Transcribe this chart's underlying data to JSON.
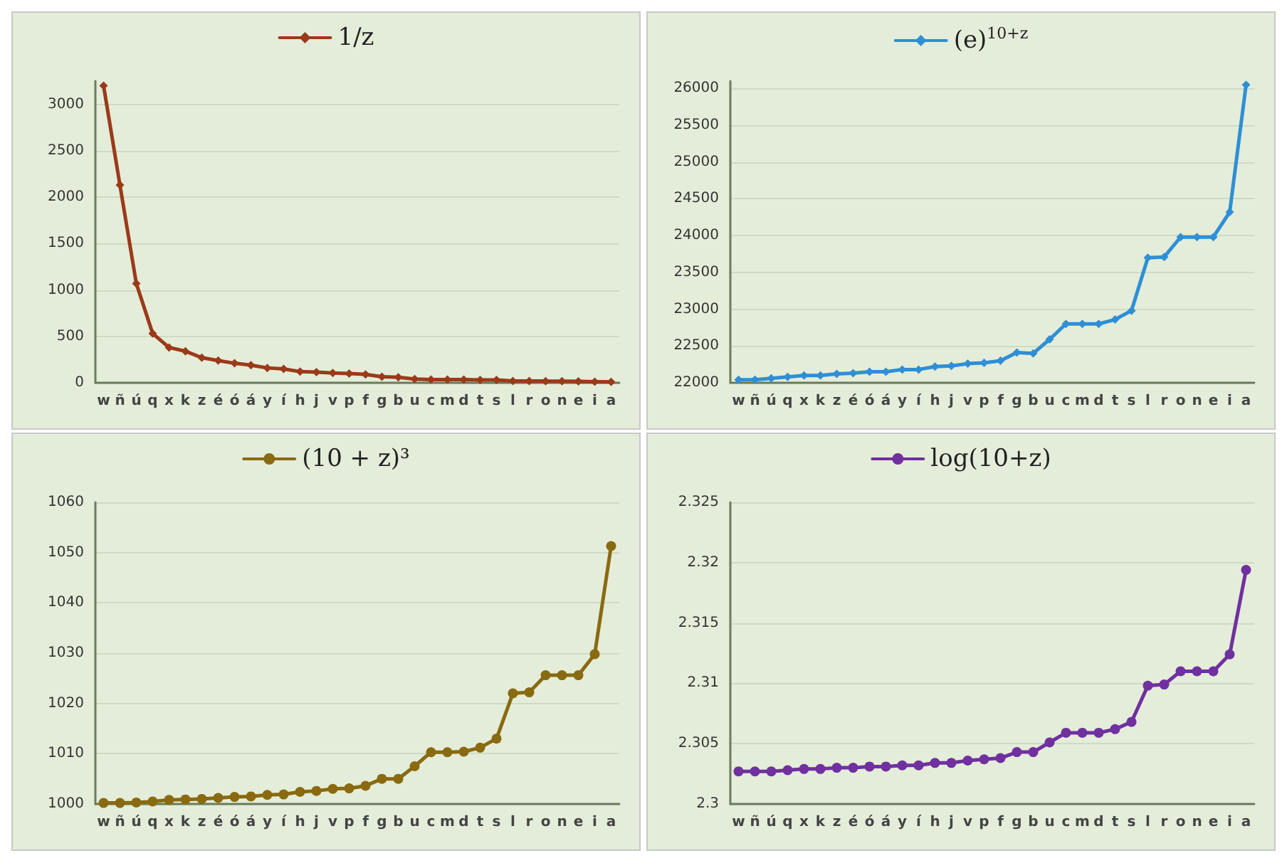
{
  "chart_data": [
    {
      "type": "line",
      "categories": [
        "w",
        "ñ",
        "ú",
        "q",
        "x",
        "k",
        "z",
        "é",
        "ó",
        "á",
        "y",
        "í",
        "h",
        "j",
        "v",
        "p",
        "f",
        "g",
        "b",
        "u",
        "c",
        "m",
        "d",
        "t",
        "s",
        "l",
        "r",
        "o",
        "n",
        "e",
        "i",
        "a"
      ],
      "series": [
        {
          "name": "1/z",
          "color": "#9b3a1a",
          "values": [
            3200,
            2130,
            1070,
            530,
            380,
            340,
            270,
            240,
            210,
            190,
            160,
            150,
            120,
            115,
            105,
            100,
            90,
            65,
            60,
            40,
            35,
            35,
            35,
            30,
            30,
            20,
            20,
            18,
            18,
            15,
            12,
            10
          ]
        }
      ],
      "ylim": [
        0,
        3250
      ],
      "yticks": [
        0,
        500,
        1000,
        1500,
        2000,
        2500,
        3000
      ],
      "grid": "y",
      "legend": "top",
      "marker": "diamond"
    },
    {
      "type": "line",
      "categories": [
        "w",
        "ñ",
        "ú",
        "q",
        "x",
        "k",
        "z",
        "é",
        "ó",
        "á",
        "y",
        "í",
        "h",
        "j",
        "v",
        "p",
        "f",
        "g",
        "b",
        "u",
        "c",
        "m",
        "d",
        "t",
        "s",
        "l",
        "r",
        "o",
        "n",
        "e",
        "i",
        "a"
      ],
      "series": [
        {
          "name": "(e)$^{10+z}$",
          "color": "#2e8fd6",
          "values": [
            22040,
            22040,
            22060,
            22080,
            22100,
            22100,
            22120,
            22130,
            22150,
            22150,
            22180,
            22180,
            22220,
            22230,
            22260,
            22270,
            22300,
            22410,
            22400,
            22590,
            22800,
            22800,
            22800,
            22860,
            22980,
            23700,
            23710,
            23980,
            23980,
            23980,
            24320,
            26050
          ]
        }
      ],
      "ylim": [
        22000,
        26100
      ],
      "yticks": [
        22000,
        22500,
        23000,
        23500,
        24000,
        24500,
        25000,
        25500,
        26000
      ],
      "grid": "y",
      "legend": "top",
      "marker": "diamond"
    },
    {
      "type": "line",
      "categories": [
        "w",
        "ñ",
        "ú",
        "q",
        "x",
        "k",
        "z",
        "é",
        "ó",
        "á",
        "y",
        "í",
        "h",
        "j",
        "v",
        "p",
        "f",
        "g",
        "b",
        "u",
        "c",
        "m",
        "d",
        "t",
        "s",
        "l",
        "r",
        "o",
        "n",
        "e",
        "i",
        "a"
      ],
      "series": [
        {
          "name": "(10 + z)³",
          "color": "#8a6a10",
          "values": [
            1000.2,
            1000.2,
            1000.3,
            1000.5,
            1000.8,
            1000.9,
            1001,
            1001.2,
            1001.4,
            1001.5,
            1001.8,
            1001.9,
            1002.4,
            1002.6,
            1003,
            1003.1,
            1003.6,
            1005,
            1005,
            1007.5,
            1010.3,
            1010.3,
            1010.4,
            1011.2,
            1013,
            1022,
            1022.2,
            1025.6,
            1025.6,
            1025.6,
            1029.8,
            1051.3
          ]
        }
      ],
      "ylim": [
        1000,
        1060
      ],
      "yticks": [
        1000,
        1010,
        1020,
        1030,
        1040,
        1050,
        1060
      ],
      "grid": "y",
      "legend": "top",
      "marker": "circle"
    },
    {
      "type": "line",
      "categories": [
        "w",
        "ñ",
        "ú",
        "q",
        "x",
        "k",
        "z",
        "é",
        "ó",
        "á",
        "y",
        "í",
        "h",
        "j",
        "v",
        "p",
        "f",
        "g",
        "b",
        "u",
        "c",
        "m",
        "d",
        "t",
        "s",
        "l",
        "r",
        "o",
        "n",
        "e",
        "i",
        "a"
      ],
      "series": [
        {
          "name": "log(10+z)",
          "color": "#7030a0",
          "values": [
            2.3027,
            2.3027,
            2.3027,
            2.3028,
            2.3029,
            2.3029,
            2.303,
            2.303,
            2.3031,
            2.3031,
            2.3032,
            2.3032,
            2.3034,
            2.3034,
            2.3036,
            2.3037,
            2.3038,
            2.3043,
            2.3043,
            2.3051,
            2.3059,
            2.3059,
            2.3059,
            2.3062,
            2.3068,
            2.3098,
            2.3099,
            2.311,
            2.311,
            2.311,
            2.3124,
            2.3194
          ]
        }
      ],
      "ylim": [
        2.3,
        2.325
      ],
      "yticks": [
        2.3,
        2.305,
        2.31,
        2.315,
        2.32,
        2.325
      ],
      "grid": "y",
      "legend": "top",
      "marker": "circle"
    }
  ]
}
